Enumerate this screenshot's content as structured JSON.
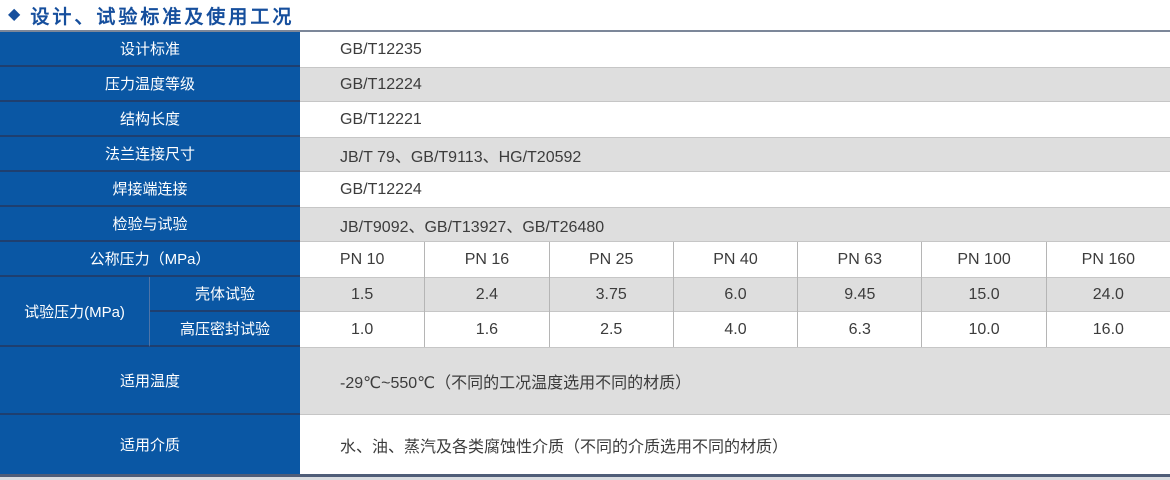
{
  "title": {
    "bullet": "◆",
    "text": "设计、试验标准及使用工况"
  },
  "colors": {
    "accent_blue": "#0a57a4",
    "divider_navy": "#1e3f70",
    "title_blue": "#164f9d",
    "row_gray": "#dedede"
  },
  "table": {
    "standards_rows": [
      {
        "label": "设计标准",
        "value": "GB/T12235"
      },
      {
        "label": "压力温度等级",
        "value": "GB/T12224"
      },
      {
        "label": "结构长度",
        "value": "GB/T12221"
      },
      {
        "label": "法兰连接尺寸",
        "value": "JB/T 79、GB/T9113、HG/T20592"
      },
      {
        "label": "焊接端连接",
        "value": "GB/T12224"
      },
      {
        "label": "检验与试验",
        "value": "JB/T9092、GB/T13927、GB/T26480"
      }
    ],
    "pressure": {
      "nominal_label": "公称压力（MPa）",
      "pn_headers": [
        "PN 10",
        "PN 16",
        "PN 25",
        "PN 40",
        "PN 63",
        "PN 100",
        "PN 160"
      ],
      "test_label": "试验压力(MPa)",
      "shell_row": {
        "label": "壳体试验",
        "values": [
          "1.5",
          "2.4",
          "3.75",
          "6.0",
          "9.45",
          "15.0",
          "24.0"
        ]
      },
      "seal_row": {
        "label": "高压密封试验",
        "values": [
          "1.0",
          "1.6",
          "2.5",
          "4.0",
          "6.3",
          "10.0",
          "16.0"
        ]
      }
    },
    "condition_rows": [
      {
        "label": "适用温度",
        "value": "-29℃~550℃（不同的工况温度选用不同的材质）"
      },
      {
        "label": "适用介质",
        "value": "水、油、蒸汽及各类腐蚀性介质（不同的介质选用不同的材质）"
      }
    ]
  }
}
